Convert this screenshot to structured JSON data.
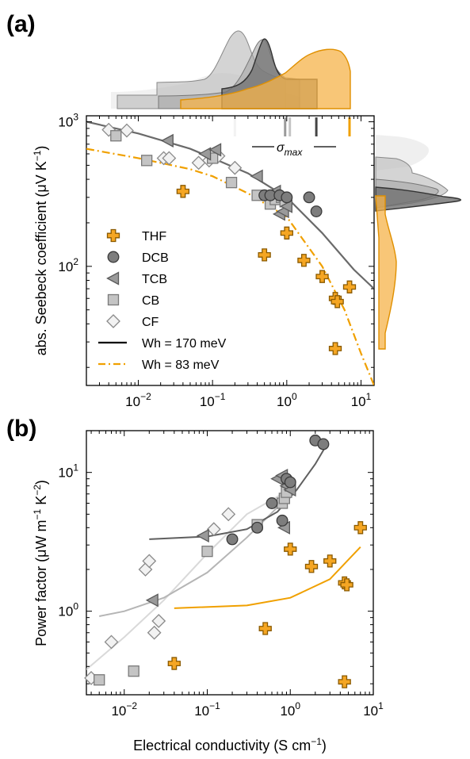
{
  "colors": {
    "THF": "#f5a623",
    "THF_edge": "#8a5a00",
    "DCB": "#7d7d7d",
    "TCB": "#9a9a9a",
    "CB": "#c4c4c4",
    "CF": "#f2f2f2",
    "fit_dark": "#6a6a6a",
    "fit_orange": "#f0a000"
  },
  "chart_data": [
    {
      "panel": "(a)",
      "type": "scatter",
      "xscale": "log",
      "yscale": "log",
      "xlim": [
        0.002,
        15
      ],
      "ylim": [
        15,
        1100
      ],
      "ylabel_main": "abs. Seebeck coefficient (μV K",
      "ylabel_sup": "−1",
      "ylabel_end": ")",
      "xticks": [
        {
          "v": 0.01,
          "b": "10",
          "e": "−2"
        },
        {
          "v": 0.1,
          "b": "10",
          "e": "−1"
        },
        {
          "v": 1,
          "b": "10",
          "e": "0"
        },
        {
          "v": 10,
          "b": "10",
          "e": "1"
        }
      ],
      "yticks": [
        {
          "v": 100,
          "b": "10",
          "e": "2"
        },
        {
          "v": 1000,
          "b": "10",
          "e": "3"
        }
      ],
      "sigma_label": "σ",
      "sigma_sub": "max",
      "sigma_max": [
        {
          "name": "CF",
          "x": 0.2
        },
        {
          "name": "CB",
          "x": 1.1
        },
        {
          "name": "TCB",
          "x": 0.95
        },
        {
          "name": "DCB",
          "x": 2.5
        },
        {
          "name": "THF",
          "x": 7
        }
      ],
      "legend": [
        {
          "name": "THF",
          "label": "THF",
          "marker": "plus"
        },
        {
          "name": "DCB",
          "label": "DCB",
          "marker": "circle"
        },
        {
          "name": "TCB",
          "label": "TCB",
          "marker": "triangle"
        },
        {
          "name": "CB",
          "label": "CB",
          "marker": "square"
        },
        {
          "name": "CF",
          "label": "CF",
          "marker": "diamond"
        },
        {
          "name": "fit1",
          "label": "Wh = 170 meV",
          "line": "solid"
        },
        {
          "name": "fit2",
          "label": "Wh = 83 meV",
          "line": "dashdot"
        }
      ],
      "series": [
        {
          "name": "CF",
          "marker": "diamond",
          "points": [
            [
              0.004,
              880
            ],
            [
              0.007,
              870
            ],
            [
              0.022,
              560
            ],
            [
              0.026,
              560
            ],
            [
              0.065,
              520
            ],
            [
              0.09,
              540
            ],
            [
              0.12,
              580
            ],
            [
              0.2,
              480
            ]
          ]
        },
        {
          "name": "CB",
          "marker": "square",
          "points": [
            [
              0.005,
              800
            ],
            [
              0.013,
              540
            ],
            [
              0.1,
              560
            ],
            [
              0.18,
              380
            ],
            [
              0.4,
              310
            ],
            [
              0.6,
              270
            ],
            [
              0.7,
              290
            ],
            [
              0.85,
              300
            ],
            [
              0.95,
              280
            ]
          ]
        },
        {
          "name": "TCB",
          "marker": "triangle",
          "points": [
            [
              0.025,
              740
            ],
            [
              0.08,
              600
            ],
            [
              0.11,
              640
            ],
            [
              0.4,
              420
            ],
            [
              0.7,
              330
            ],
            [
              0.8,
              230
            ],
            [
              0.9,
              240
            ],
            [
              1.0,
              260
            ]
          ]
        },
        {
          "name": "DCB",
          "marker": "circle",
          "points": [
            [
              0.5,
              310
            ],
            [
              0.6,
              310
            ],
            [
              0.8,
              310
            ],
            [
              1.0,
              300
            ],
            [
              2.0,
              300
            ],
            [
              2.5,
              240
            ]
          ]
        },
        {
          "name": "THF",
          "marker": "plus",
          "points": [
            [
              0.04,
              330
            ],
            [
              0.5,
              120
            ],
            [
              1.0,
              170
            ],
            [
              1.7,
              110
            ],
            [
              3.0,
              85
            ],
            [
              4.5,
              60
            ],
            [
              4.8,
              57
            ],
            [
              7.0,
              72
            ],
            [
              4.5,
              27
            ]
          ]
        }
      ],
      "fits": [
        {
          "name": "fit1",
          "points": [
            [
              0.002,
              1000
            ],
            [
              0.01,
              830
            ],
            [
              0.05,
              650
            ],
            [
              0.1,
              560
            ],
            [
              0.3,
              440
            ],
            [
              1,
              300
            ],
            [
              3,
              170
            ],
            [
              8,
              95
            ],
            [
              15,
              70
            ]
          ]
        },
        {
          "name": "fit2",
          "points": [
            [
              0.002,
              650
            ],
            [
              0.01,
              560
            ],
            [
              0.05,
              470
            ],
            [
              0.1,
              420
            ],
            [
              0.3,
              320
            ],
            [
              1,
              220
            ],
            [
              3,
              100
            ],
            [
              6,
              50
            ],
            [
              10,
              25
            ],
            [
              15,
              15
            ]
          ]
        }
      ]
    },
    {
      "panel": "(b)",
      "type": "scatter",
      "xscale": "log",
      "yscale": "log",
      "xlim": [
        0.0035,
        10
      ],
      "ylim": [
        0.25,
        20
      ],
      "xlabel_main": "Electrical conductivity (S cm",
      "xlabel_sup": "−1",
      "xlabel_end": ")",
      "ylabel_main": "Power factor (μW m",
      "ylabel_sup1": "−1",
      "ylabel_mid": " K",
      "ylabel_sup2": "−2",
      "ylabel_end": ")",
      "xticks": [
        {
          "v": 0.01,
          "b": "10",
          "e": "−2"
        },
        {
          "v": 0.1,
          "b": "10",
          "e": "−1"
        },
        {
          "v": 1,
          "b": "10",
          "e": "0"
        },
        {
          "v": 10,
          "b": "10",
          "e": "1"
        }
      ],
      "yticks": [
        {
          "v": 1,
          "b": "10",
          "e": "0"
        },
        {
          "v": 10,
          "b": "10",
          "e": "1"
        }
      ],
      "series": [
        {
          "name": "CF",
          "marker": "diamond",
          "points": [
            [
              0.004,
              0.33
            ],
            [
              0.007,
              0.6
            ],
            [
              0.018,
              2.0
            ],
            [
              0.02,
              2.3
            ],
            [
              0.023,
              0.7
            ],
            [
              0.026,
              0.85
            ],
            [
              0.12,
              3.9
            ],
            [
              0.18,
              5.0
            ]
          ]
        },
        {
          "name": "CB",
          "marker": "square",
          "points": [
            [
              0.005,
              0.32
            ],
            [
              0.013,
              0.37
            ],
            [
              0.1,
              2.7
            ],
            [
              0.4,
              4.2
            ],
            [
              0.8,
              6.0
            ],
            [
              0.85,
              6.5
            ],
            [
              0.9,
              7.2
            ],
            [
              1.0,
              8.0
            ]
          ]
        },
        {
          "name": "TCB",
          "marker": "triangle",
          "points": [
            [
              0.022,
              1.2
            ],
            [
              0.09,
              3.5
            ],
            [
              0.7,
              9.0
            ],
            [
              0.8,
              9.5
            ],
            [
              0.85,
              4.0
            ],
            [
              0.9,
              8.0
            ],
            [
              1.0,
              7.5
            ]
          ]
        },
        {
          "name": "DCB",
          "marker": "circle",
          "points": [
            [
              0.2,
              3.3
            ],
            [
              0.4,
              4.0
            ],
            [
              0.6,
              6.0
            ],
            [
              0.8,
              4.5
            ],
            [
              0.9,
              9.0
            ],
            [
              1.0,
              8.5
            ],
            [
              2.0,
              17
            ],
            [
              2.5,
              16
            ]
          ]
        },
        {
          "name": "THF",
          "marker": "plus",
          "points": [
            [
              0.04,
              0.42
            ],
            [
              0.5,
              0.75
            ],
            [
              1.0,
              2.8
            ],
            [
              1.8,
              2.1
            ],
            [
              3.0,
              2.3
            ],
            [
              4.5,
              1.6
            ],
            [
              4.8,
              1.55
            ],
            [
              7.0,
              4.0
            ],
            [
              4.5,
              0.31
            ]
          ]
        }
      ],
      "fits": [
        {
          "color": "CF_line",
          "points": [
            [
              0.0035,
              0.38
            ],
            [
              0.01,
              0.65
            ],
            [
              0.03,
              1.2
            ],
            [
              0.1,
              2.6
            ],
            [
              0.3,
              5.0
            ],
            [
              0.8,
              7.0
            ]
          ]
        },
        {
          "color": "CB_line",
          "points": [
            [
              0.005,
              0.92
            ],
            [
              0.01,
              1.0
            ],
            [
              0.03,
              1.25
            ],
            [
              0.1,
              1.9
            ],
            [
              0.3,
              3.4
            ],
            [
              0.7,
              5.6
            ],
            [
              1.0,
              6.8
            ]
          ]
        },
        {
          "color": "DCB_line",
          "points": [
            [
              0.02,
              3.3
            ],
            [
              0.1,
              3.45
            ],
            [
              0.3,
              3.9
            ],
            [
              0.7,
              5.2
            ],
            [
              1.2,
              7.5
            ],
            [
              2.0,
              11.5
            ],
            [
              2.6,
              15
            ]
          ]
        },
        {
          "color": "THF_line",
          "points": [
            [
              0.04,
              1.05
            ],
            [
              0.3,
              1.1
            ],
            [
              1,
              1.25
            ],
            [
              3,
              1.7
            ],
            [
              7,
              2.9
            ]
          ]
        }
      ]
    }
  ]
}
